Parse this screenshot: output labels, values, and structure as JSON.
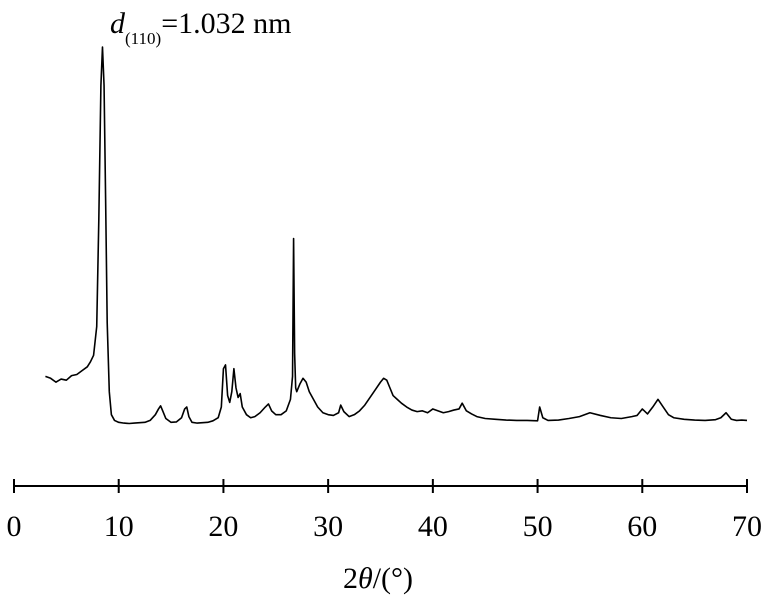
{
  "chart_data": {
    "type": "line",
    "title": "",
    "annotation": {
      "d_symbol": "d",
      "d_subscript": "(110)",
      "d_value": "=1.032 nm"
    },
    "xlabel": {
      "prefix": "2",
      "symbol": "θ",
      "suffix": "/(°)"
    },
    "ylabel": "",
    "xlim": [
      0,
      70
    ],
    "ylim": [
      0,
      100
    ],
    "x_ticks": [
      0,
      10,
      20,
      30,
      40,
      50,
      60,
      70
    ],
    "y_axis_visible": false,
    "grid": false,
    "legend": "none",
    "colors": {
      "line": "#000000"
    },
    "series": [
      {
        "x": [
          3.0,
          3.5,
          4.0,
          4.5,
          5.0,
          5.5,
          6.0,
          6.5,
          7.0,
          7.3,
          7.6,
          7.9,
          8.1,
          8.3,
          8.45,
          8.6,
          8.75,
          8.9,
          9.1,
          9.3,
          9.6,
          10.0,
          10.5,
          11.0,
          11.5,
          12.0,
          12.5,
          13.0,
          13.5,
          13.8,
          14.0,
          14.2,
          14.5,
          15.0,
          15.5,
          16.0,
          16.3,
          16.5,
          16.7,
          17.0,
          17.5,
          18.0,
          18.5,
          19.0,
          19.5,
          19.8,
          20.0,
          20.2,
          20.4,
          20.6,
          20.8,
          21.0,
          21.2,
          21.4,
          21.6,
          21.8,
          22.2,
          22.6,
          23.0,
          23.5,
          24.0,
          24.3,
          24.6,
          25.0,
          25.5,
          26.0,
          26.4,
          26.6,
          26.7,
          26.8,
          26.9,
          27.0,
          27.3,
          27.6,
          27.9,
          28.2,
          28.6,
          29.0,
          29.5,
          30.0,
          30.5,
          31.0,
          31.2,
          31.5,
          32.0,
          32.5,
          33.0,
          33.5,
          34.0,
          34.5,
          35.0,
          35.3,
          35.6,
          35.9,
          36.2,
          36.6,
          37.0,
          37.5,
          38.0,
          38.5,
          39.0,
          39.5,
          40.0,
          40.5,
          41.0,
          41.5,
          42.0,
          42.5,
          42.8,
          43.2,
          43.7,
          44.2,
          45.0,
          46.0,
          47.0,
          48.0,
          49.0,
          50.0,
          50.2,
          50.5,
          51.0,
          52.0,
          53.0,
          54.0,
          55.0,
          56.0,
          57.0,
          58.0,
          59.0,
          59.5,
          60.0,
          60.5,
          61.0,
          61.5,
          62.0,
          62.5,
          63.0,
          64.0,
          65.0,
          66.0,
          67.0,
          67.5,
          68.0,
          68.5,
          69.0,
          69.5,
          70.0
        ],
        "y": [
          14.0,
          13.5,
          12.5,
          13.3,
          13.0,
          14.2,
          14.5,
          15.5,
          16.5,
          17.8,
          19.5,
          27.0,
          55.0,
          90.0,
          100.0,
          90.0,
          60.0,
          28.0,
          10.0,
          4.0,
          2.5,
          2.0,
          1.8,
          1.7,
          1.8,
          1.9,
          2.0,
          2.5,
          4.0,
          5.5,
          6.3,
          5.0,
          3.0,
          2.0,
          2.1,
          3.2,
          5.5,
          6.0,
          3.5,
          2.0,
          1.8,
          1.9,
          2.0,
          2.4,
          3.2,
          6.0,
          16.0,
          17.0,
          9.0,
          7.2,
          10.0,
          16.0,
          11.0,
          8.5,
          9.5,
          6.0,
          4.0,
          3.2,
          3.5,
          4.5,
          6.0,
          6.8,
          5.0,
          4.0,
          4.0,
          5.0,
          8.0,
          14.0,
          50.0,
          20.0,
          11.0,
          10.0,
          12.0,
          13.5,
          12.5,
          10.0,
          8.0,
          6.0,
          4.5,
          4.0,
          3.8,
          4.5,
          6.5,
          4.8,
          3.5,
          4.0,
          5.0,
          6.5,
          8.5,
          10.5,
          12.5,
          13.5,
          13.0,
          11.0,
          9.0,
          8.0,
          7.0,
          6.0,
          5.2,
          4.8,
          5.0,
          4.5,
          5.5,
          5.0,
          4.5,
          4.8,
          5.2,
          5.5,
          7.0,
          5.0,
          4.2,
          3.5,
          3.0,
          2.8,
          2.6,
          2.5,
          2.5,
          2.4,
          6.0,
          3.2,
          2.5,
          2.6,
          3.0,
          3.5,
          4.5,
          3.8,
          3.2,
          3.0,
          3.5,
          3.8,
          5.5,
          4.2,
          6.0,
          8.0,
          6.0,
          4.0,
          3.2,
          2.8,
          2.6,
          2.5,
          2.7,
          3.2,
          4.5,
          2.8,
          2.5,
          2.6,
          2.5
        ]
      }
    ]
  }
}
